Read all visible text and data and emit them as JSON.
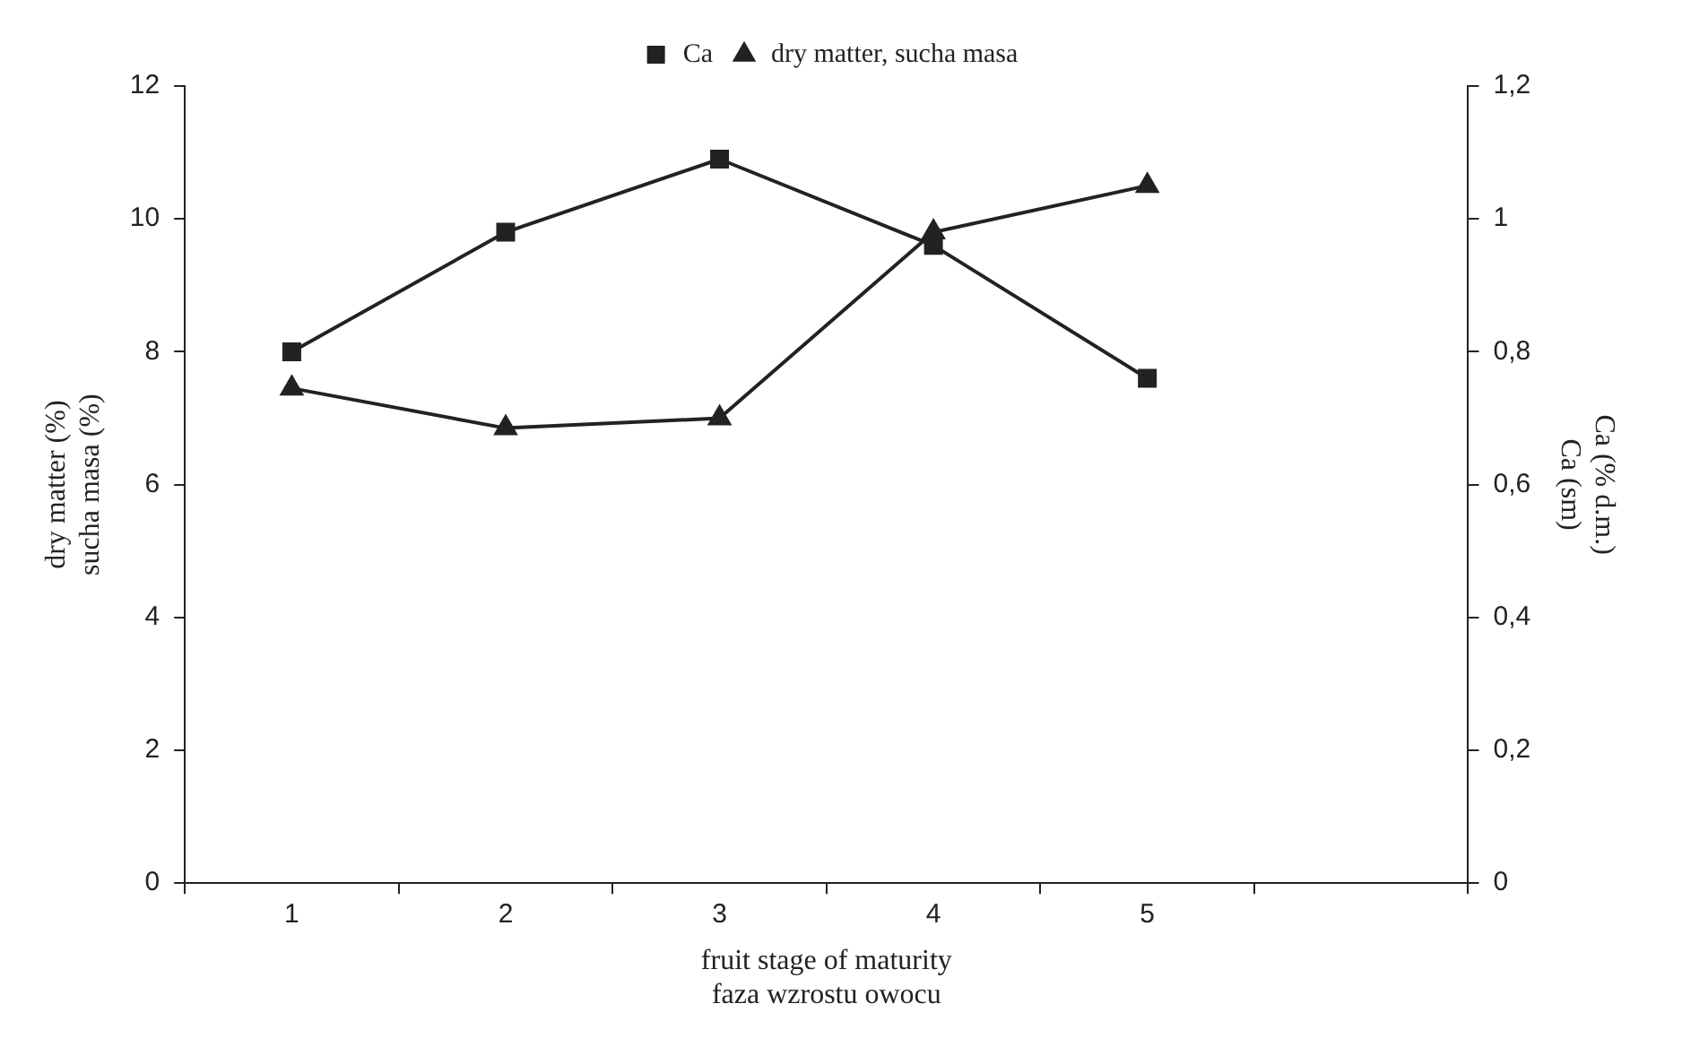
{
  "chart_data": {
    "type": "line",
    "xlabel": "fruit stage of maturity\nfaza wzrostu owocu",
    "ylabel": "dry matter (%)\nsucha masa (%)",
    "y2label": "Ca (% d.m.)\nCa (sm)",
    "categories": [
      "1",
      "2",
      "3",
      "4",
      "5",
      null
    ],
    "series": [
      {
        "name": "Ca",
        "color": "#222222",
        "marker": "square",
        "axis": "y2",
        "values": [
          0.8,
          0.98,
          1.09,
          0.96,
          0.76,
          null
        ]
      },
      {
        "name": "dry matter, sucha masa",
        "color": "#222222",
        "marker": "triangle",
        "values": [
          7.45,
          6.85,
          7.0,
          9.8,
          10.5,
          null
        ]
      }
    ],
    "ylim": [
      0,
      12
    ],
    "yticks": [
      0,
      2,
      4,
      6,
      8,
      10,
      12
    ],
    "y2lim": [
      0,
      1.2
    ],
    "y2ticks": [
      0,
      {
        "value": 0.2,
        "label": "0,2"
      },
      {
        "value": 0.4,
        "label": "0,4"
      },
      {
        "value": 0.6,
        "label": "0,6"
      },
      {
        "value": 0.8,
        "label": "0,8"
      },
      1,
      {
        "value": 1.2,
        "label": "1,2"
      }
    ],
    "grid": false,
    "legend": "top",
    "line_style": "solid"
  }
}
